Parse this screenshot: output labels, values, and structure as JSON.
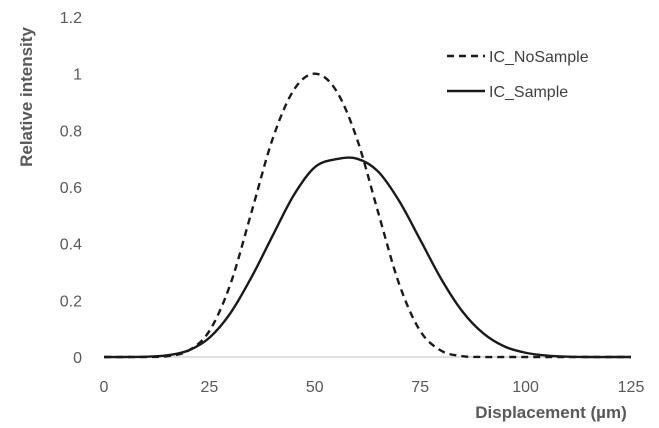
{
  "chart_data": {
    "type": "line",
    "xlabel": "Displacement (µm)",
    "ylabel": "Relative intensity",
    "xlim": [
      0,
      125
    ],
    "ylim": [
      0,
      1.2
    ],
    "x_ticks": [
      "0",
      "25",
      "50",
      "75",
      "100",
      "125"
    ],
    "y_ticks": [
      "0",
      "0.2",
      "0.4",
      "0.6",
      "0.8",
      "1",
      "1.2"
    ],
    "grid": false,
    "legend_position": "top-right",
    "x": [
      0,
      5,
      10,
      15,
      20,
      25,
      30,
      35,
      40,
      45,
      50,
      55,
      60,
      65,
      70,
      75,
      80,
      85,
      90,
      95,
      100,
      105,
      110,
      115,
      120,
      125
    ],
    "series": [
      {
        "name": "IC_NoSample",
        "line_style": "dashed",
        "color": "#1a1a1a",
        "values": [
          0.0,
          0.0,
          0.0,
          0.003,
          0.022,
          0.092,
          0.258,
          0.512,
          0.77,
          0.942,
          1.0,
          0.942,
          0.77,
          0.512,
          0.258,
          0.092,
          0.022,
          0.003,
          0.0,
          0.0,
          0.0,
          0.0,
          0.0,
          0.0,
          0.0,
          0.0
        ]
      },
      {
        "name": "IC_Sample",
        "line_style": "solid",
        "color": "#1a1a1a",
        "values": [
          0.0,
          0.0,
          0.001,
          0.006,
          0.023,
          0.068,
          0.155,
          0.282,
          0.428,
          0.571,
          0.67,
          0.698,
          0.7,
          0.655,
          0.551,
          0.414,
          0.275,
          0.161,
          0.083,
          0.037,
          0.015,
          0.005,
          0.001,
          0.0,
          0.0,
          0.0
        ]
      }
    ]
  }
}
